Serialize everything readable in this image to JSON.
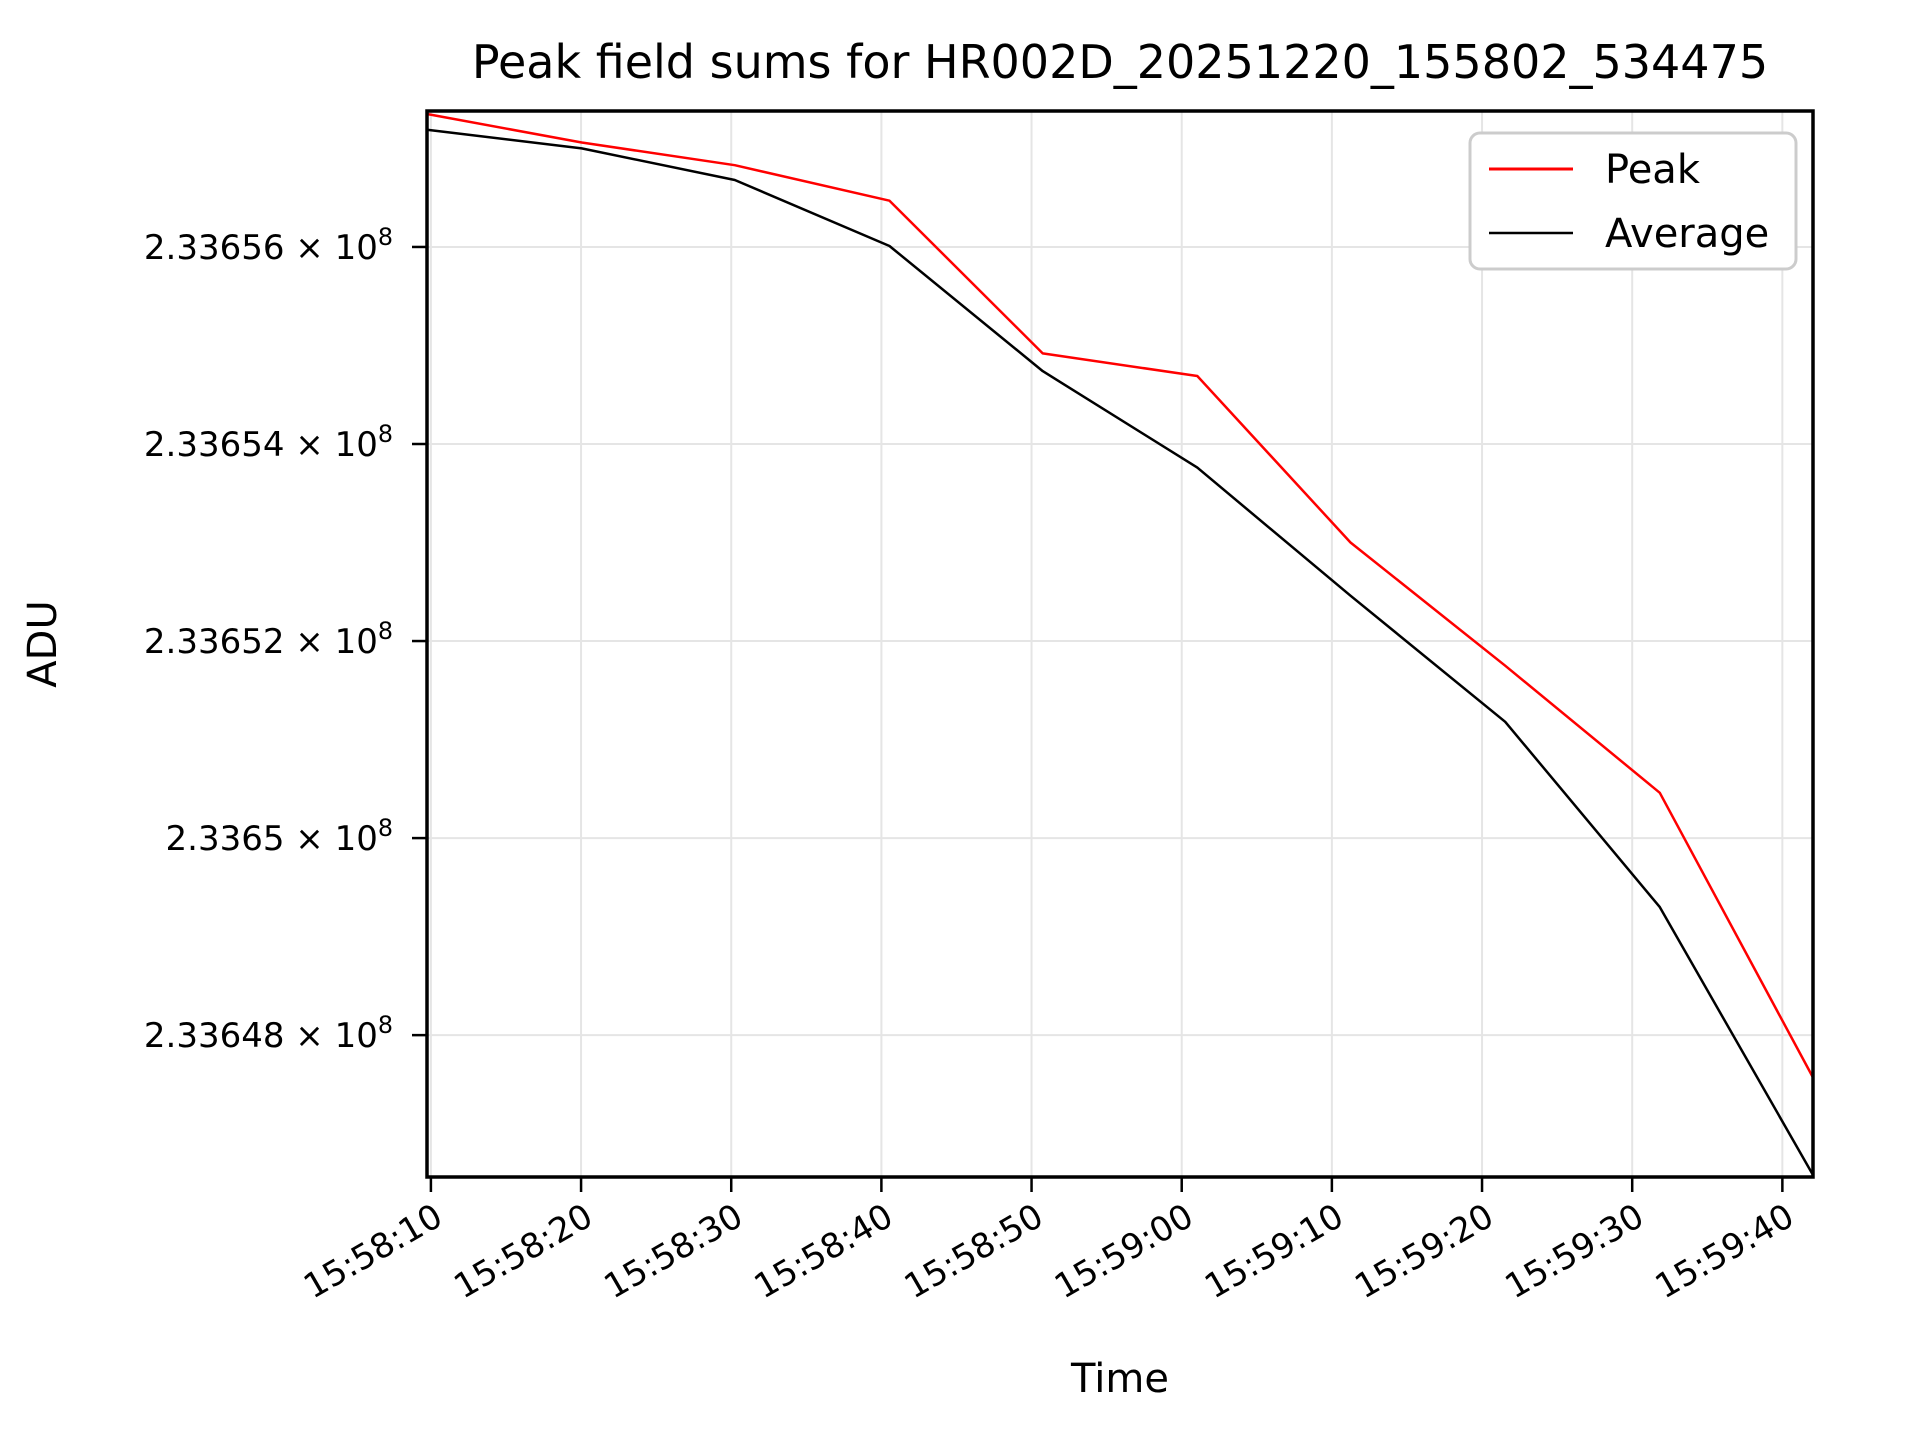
{
  "chart_data": {
    "type": "line",
    "title": "Peak field sums for HR002D_20251220_155802_534475",
    "xlabel": "Time",
    "ylabel": "ADU",
    "grid": true,
    "legend_position": "upper right",
    "x_tick_labels": [
      "15:58:10",
      "15:58:20",
      "15:58:30",
      "15:58:40",
      "15:58:50",
      "15:59:00",
      "15:59:10",
      "15:59:20",
      "15:59:30",
      "15:59:40"
    ],
    "y_ticks": [
      {
        "mantissa": "2.33656 × 10",
        "exp": "8",
        "value": 233656000
      },
      {
        "mantissa": "2.33654 × 10",
        "exp": "8",
        "value": 233654000
      },
      {
        "mantissa": "2.33652 × 10",
        "exp": "8",
        "value": 233652000
      },
      {
        "mantissa": "2.3365 × 10",
        "exp": "8",
        "value": 233650000
      },
      {
        "mantissa": "2.33648 × 10",
        "exp": "8",
        "value": 233648000
      }
    ],
    "axis": {
      "y_min": 233646560,
      "y_max": 233657380,
      "x_span_seconds": 92.3,
      "x_first_tick_offset_seconds": 0.26,
      "x_tick_interval_seconds": 10
    },
    "x_offsets_seconds": [
      0,
      10.3,
      20.5,
      30.8,
      41.0,
      51.3,
      61.5,
      71.8,
      82.1,
      92.3
    ],
    "series": [
      {
        "name": "Peak",
        "color": "#ff0000",
        "values": [
          233657350,
          233657060,
          233656830,
          233656470,
          233654920,
          233654690,
          233653000,
          233651750,
          233650460,
          233647570
        ]
      },
      {
        "name": "Average",
        "color": "#000000",
        "values": [
          233657190,
          233657000,
          233656680,
          233656010,
          233654740,
          233653760,
          233652460,
          233651180,
          233649300,
          233646580
        ]
      }
    ],
    "colors": {
      "grid": "#e5e5e5",
      "spine": "#000000",
      "legend_border": "#cccccc",
      "background": "#ffffff"
    }
  }
}
